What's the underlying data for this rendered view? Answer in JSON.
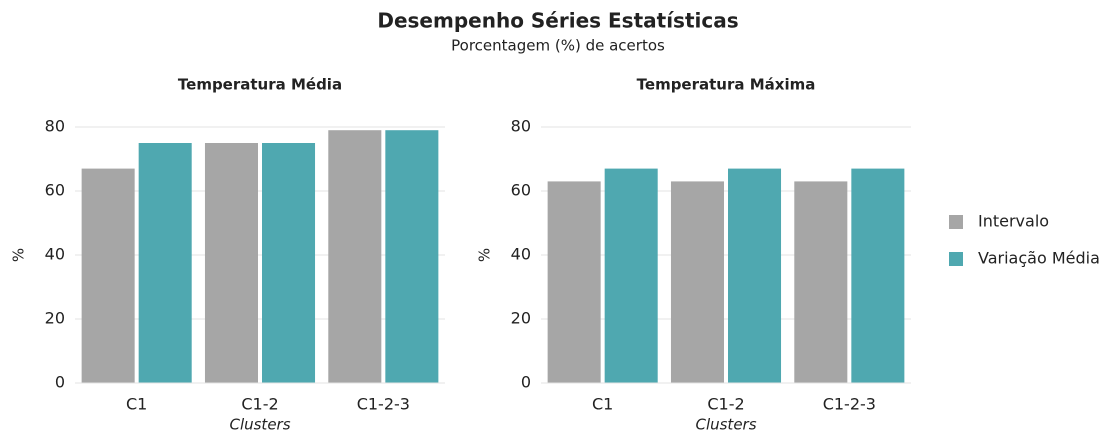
{
  "title": "Desempenho Séries Estatísticas",
  "subtitle": "Porcentagem (%) de acertos",
  "chart_data": [
    {
      "type": "bar",
      "title": "Temperatura Média",
      "ylabel": "%",
      "xlabel": "Clusters",
      "categories": [
        "C1",
        "C1-2",
        "C1-2-3"
      ],
      "series": [
        {
          "name": "Intervalo",
          "color": "#a6a6a6",
          "values": [
            67,
            75,
            79
          ]
        },
        {
          "name": "Variação Média",
          "color": "#4fa8b0",
          "values": [
            75,
            75,
            79
          ]
        }
      ],
      "ylim": [
        0,
        80
      ],
      "yticks": [
        0,
        20,
        40,
        60,
        80
      ],
      "grid": true,
      "legend": "right"
    },
    {
      "type": "bar",
      "title": "Temperatura Máxima",
      "ylabel": "%",
      "xlabel": "Clusters",
      "categories": [
        "C1",
        "C1-2",
        "C1-2-3"
      ],
      "series": [
        {
          "color": "#a6a6a6",
          "values": [
            63,
            63,
            63
          ]
        },
        {
          "color": "#4fa8b0",
          "values": [
            67,
            67,
            67
          ]
        }
      ],
      "ylim": [
        0,
        80
      ],
      "yticks": [
        0,
        20,
        40,
        60,
        80
      ],
      "grid": true
    }
  ]
}
